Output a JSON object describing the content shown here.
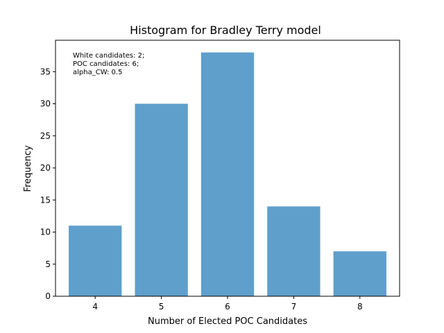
{
  "chart_data": {
    "type": "bar",
    "title": "Histogram for Bradley Terry model",
    "xlabel": "Number of Elected POC Candidates",
    "ylabel": "Frequency",
    "categories": [
      "4",
      "5",
      "6",
      "7",
      "8"
    ],
    "values": [
      11,
      30,
      38,
      14,
      7
    ],
    "xlim": [
      3.4,
      8.6
    ],
    "ylim": [
      0,
      39.9
    ],
    "y_ticks": [
      0,
      5,
      10,
      15,
      20,
      25,
      30,
      35
    ],
    "bar_color": "#5f9fcc",
    "grid": false,
    "legend": "none",
    "annotation_lines": [
      "White candidates: 2;",
      "POC candidates: 6;",
      "alpha_CW: 0.5"
    ],
    "annotation_position": "top-left"
  }
}
